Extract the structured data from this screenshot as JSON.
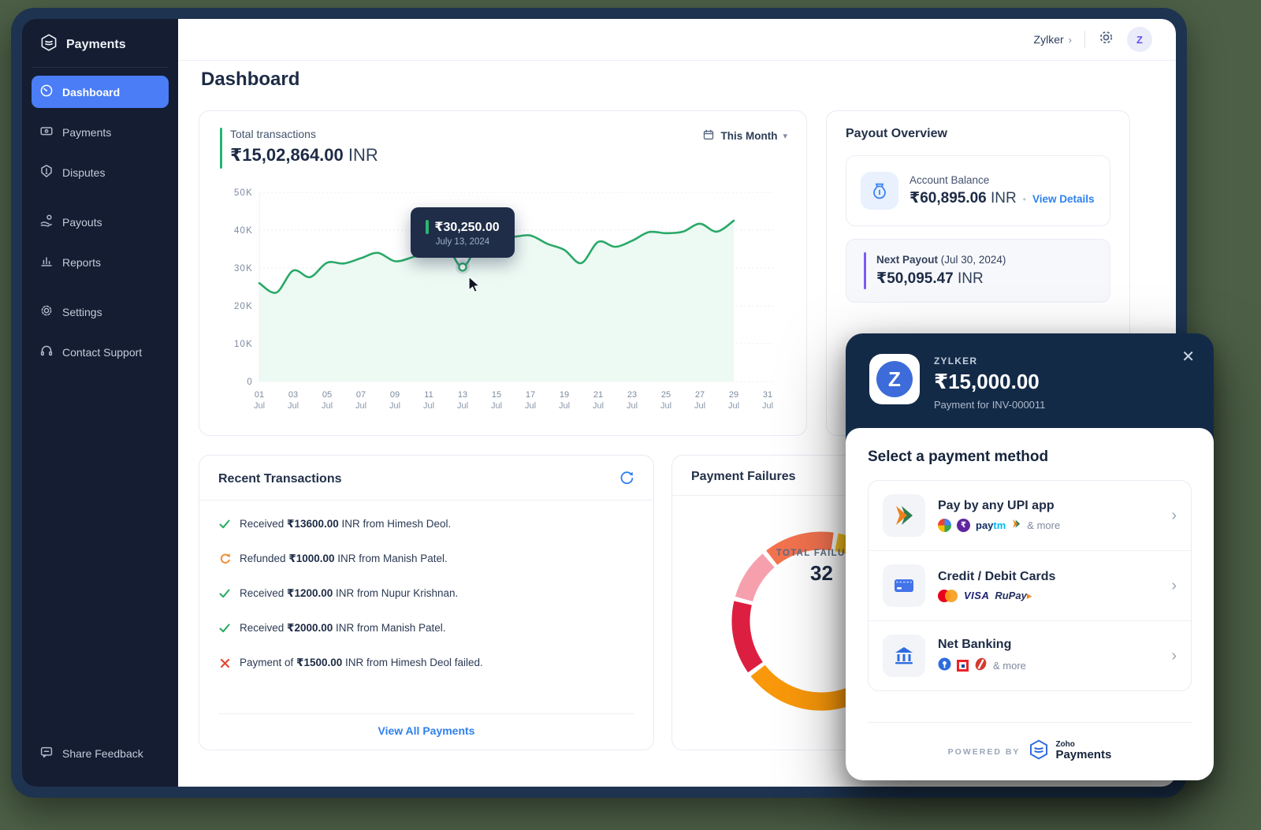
{
  "app": {
    "brand": "Payments"
  },
  "sidebar": {
    "items": [
      {
        "label": "Dashboard",
        "icon": "dashboard-icon",
        "active": true
      },
      {
        "label": "Payments",
        "icon": "payments-icon"
      },
      {
        "label": "Disputes",
        "icon": "disputes-icon"
      },
      {
        "label": "Payouts",
        "icon": "payouts-icon",
        "gap": true
      },
      {
        "label": "Reports",
        "icon": "reports-icon"
      },
      {
        "label": "Settings",
        "icon": "settings-icon",
        "gap": true
      },
      {
        "label": "Contact Support",
        "icon": "support-icon"
      }
    ],
    "footer_label": "Share Feedback"
  },
  "topbar": {
    "org": "Zylker",
    "avatar_initial": "Z"
  },
  "page": {
    "title": "Dashboard"
  },
  "transactions_card": {
    "label": "Total transactions",
    "amount": "₹15,02,864.00",
    "currency": "INR",
    "range_label": "This Month",
    "tooltip": {
      "value": "₹30,250.00",
      "date": "July 13, 2024"
    }
  },
  "payout_overview": {
    "title": "Payout Overview",
    "account_balance": {
      "label": "Account Balance",
      "amount": "₹60,895.06",
      "currency": "INR",
      "link": "View Details"
    },
    "next_payout": {
      "label": "Next Payout",
      "date": "(Jul 30, 2024)",
      "amount": "₹50,095.47",
      "currency": "INR"
    }
  },
  "recent_transactions": {
    "title": "Recent Transactions",
    "items": [
      {
        "status": "success",
        "prefix": "Received ",
        "amount": "₹13600.00",
        "suffix": " INR from Himesh Deol."
      },
      {
        "status": "refund",
        "prefix": "Refunded ",
        "amount": "₹1000.00",
        "suffix": " INR from Manish Patel."
      },
      {
        "status": "success",
        "prefix": "Received ",
        "amount": "₹1200.00",
        "suffix": " INR from Nupur Krishnan."
      },
      {
        "status": "success",
        "prefix": "Received ",
        "amount": "₹2000.00",
        "suffix": " INR from Manish Patel."
      },
      {
        "status": "failed",
        "prefix": "Payment of ",
        "amount": "₹1500.00",
        "suffix": " INR from Himesh Deol failed."
      }
    ],
    "link": "View All Payments"
  },
  "payment_failures": {
    "title": "Payment Failures",
    "center_label": "TOTAL FAILURES",
    "total": "32"
  },
  "payment_modal": {
    "merchant": "ZYLKER",
    "amount": "₹15,000.00",
    "description": "Payment for INV-000011",
    "heading": "Select a payment method",
    "methods": [
      {
        "title": "Pay by any UPI app",
        "tile": "upi-icon",
        "icons": [
          "gpay",
          "phonepe",
          "paytm",
          "bhim"
        ],
        "more": "& more"
      },
      {
        "title": "Credit / Debit Cards",
        "tile": "card-icon",
        "icons": [
          "mastercard",
          "visa",
          "rupay"
        ],
        "more": ""
      },
      {
        "title": "Net Banking",
        "tile": "bank-icon",
        "icons": [
          "sbi",
          "hdfc",
          "icici"
        ],
        "more": "& more"
      }
    ],
    "footer": {
      "powered_by": "POWERED BY",
      "brand_top": "Zoho",
      "brand_bottom": "Payments"
    }
  },
  "chart_data": [
    {
      "type": "line",
      "title": "Total transactions (July 2024, INR)",
      "x_days": [
        1,
        2,
        3,
        4,
        5,
        6,
        7,
        8,
        9,
        10,
        11,
        12,
        13,
        14,
        15,
        16,
        17,
        18,
        19,
        20,
        21,
        22,
        23,
        24,
        25,
        26,
        27,
        28,
        29
      ],
      "values": [
        26000,
        23500,
        29300,
        27600,
        31400,
        31200,
        32600,
        34000,
        31800,
        32800,
        34500,
        36000,
        30250,
        37000,
        39000,
        38300,
        38600,
        36400,
        34800,
        31300,
        36900,
        35600,
        37200,
        39500,
        39200,
        39600,
        41700,
        39600,
        42500
      ],
      "highlight": {
        "day": 13,
        "value": 30250,
        "label": "₹30,250.00",
        "date": "July 13, 2024"
      },
      "ylim": [
        0,
        50000
      ],
      "yticks": [
        "0",
        "10K",
        "20K",
        "30K",
        "40K",
        "50K"
      ],
      "xtick_days": [
        1,
        3,
        5,
        7,
        9,
        11,
        13,
        15,
        17,
        19,
        21,
        23,
        25,
        27,
        29,
        31
      ],
      "xtick_month": "Jul",
      "line_color": "#2aa968",
      "fill_color": "#edf9f3",
      "grid": true
    },
    {
      "type": "donut",
      "title": "Payment Failures",
      "center_label": "TOTAL FAILURES",
      "total": 32,
      "segments": [
        {
          "color": "#F7C11E",
          "from": 11,
          "to": 63,
          "approx_count": 5
        },
        {
          "color": "#F9980A",
          "from": 66,
          "to": 232,
          "approx_count": 15
        },
        {
          "color": "#DC1F41",
          "from": 235,
          "to": 283,
          "approx_count": 4
        },
        {
          "color": "#F6A0AE",
          "from": 286,
          "to": 319,
          "approx_count": 4
        },
        {
          "color": "#F4734F",
          "from": 322,
          "to": 368,
          "approx_count": 4
        }
      ]
    }
  ]
}
